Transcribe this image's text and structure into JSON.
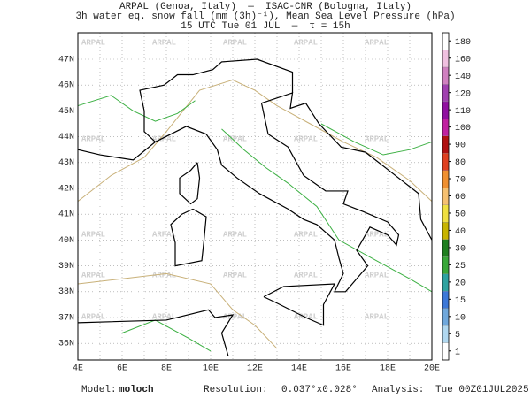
{
  "header": {
    "lines": [
      "ARPAL (Genoa, Italy)  —  ISAC-CNR (Bologna, Italy)",
      "3h water eq. snow fall (mm (3h)⁻¹), Mean Sea Level Pressure (hPa)",
      "15 UTC Tue 01 JUL  —  τ = 15h"
    ]
  },
  "map": {
    "lon_ticks": [
      "4E",
      "6E",
      "8E",
      "10E",
      "12E",
      "14E",
      "16E",
      "18E",
      "20E"
    ],
    "lat_ticks": [
      "36N",
      "37N",
      "38N",
      "39N",
      "40N",
      "41N",
      "42N",
      "43N",
      "44N",
      "45N",
      "46N",
      "47N"
    ],
    "watermark": "ARPAL"
  },
  "colorbar": {
    "levels": [
      1,
      5,
      10,
      15,
      20,
      25,
      30,
      40,
      50,
      60,
      70,
      80,
      90,
      100,
      110,
      120,
      140,
      160,
      180
    ],
    "colors": [
      "#ffffff",
      "#b0d8f0",
      "#6fa8dc",
      "#3c78d8",
      "#2ea3a0",
      "#38a838",
      "#1f7f1f",
      "#c8b400",
      "#f0e040",
      "#f5c070",
      "#f09030",
      "#e04020",
      "#b01010",
      "#c020a0",
      "#9010a0",
      "#a040b0",
      "#d080c0",
      "#f0c0e0",
      "#ffffff"
    ]
  },
  "footer": {
    "model_label": "Model:",
    "model": "moloch",
    "resolution_label": "Resolution:",
    "resolution": "0.037°x0.028°",
    "analysis_label": "Analysis:",
    "analysis": "Tue 00Z01JUL2025"
  }
}
